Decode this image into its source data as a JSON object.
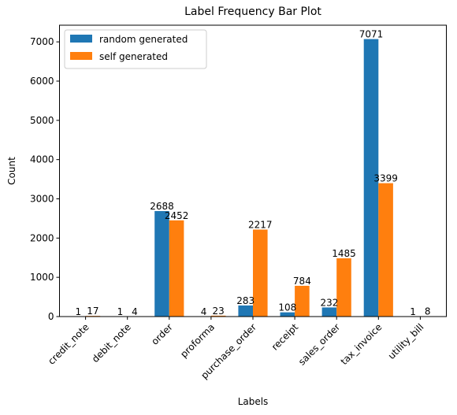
{
  "chart_data": {
    "type": "bar",
    "title": "Label Frequency Bar Plot",
    "xlabel": "Labels",
    "ylabel": "Count",
    "categories": [
      "credit_note",
      "debit_note",
      "order",
      "proforma",
      "purchase_order",
      "receipt",
      "sales_order",
      "tax_invoice",
      "utility_bill"
    ],
    "series": [
      {
        "name": "random generated",
        "color": "#1f77b4",
        "values": [
          1,
          1,
          2688,
          4,
          283,
          108,
          232,
          7071,
          1
        ]
      },
      {
        "name": "self generated",
        "color": "#ff7f0e",
        "values": [
          17,
          4,
          2452,
          23,
          2217,
          784,
          1485,
          3399,
          8
        ]
      }
    ],
    "ylim": [
      0,
      7424.55
    ],
    "yticks": [
      0,
      1000,
      2000,
      3000,
      4000,
      5000,
      6000,
      7000
    ],
    "grid": false,
    "legend_position": "top-left",
    "data_labels": true
  }
}
